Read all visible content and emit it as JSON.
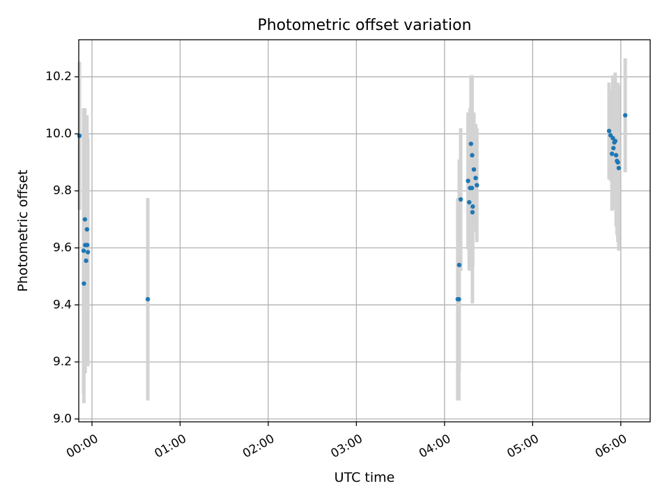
{
  "chart_data": {
    "type": "scatter",
    "title": "Photometric offset variation",
    "xlabel": "UTC time",
    "ylabel": "Photometric offset",
    "xlim": [
      "-00:09",
      "06:20"
    ],
    "ylim": [
      8.99,
      10.33
    ],
    "xticks": [
      "00:00",
      "01:00",
      "02:00",
      "03:00",
      "04:00",
      "05:00",
      "06:00"
    ],
    "yticks": [
      "9.0",
      "9.2",
      "9.4",
      "9.6",
      "9.8",
      "10.0",
      "10.2"
    ],
    "grid": true,
    "colors": {
      "points": "#1f77b4",
      "errorbars": "#d3d3d3"
    },
    "points": [
      {
        "t": "-00:08.5",
        "y": 9.993,
        "err": 0.26
      },
      {
        "t": "-00:05.7",
        "y": 9.59,
        "err": 0.5
      },
      {
        "t": "-00:05.5",
        "y": 9.475,
        "err": 0.42
      },
      {
        "t": "-00:04.8",
        "y": 9.7,
        "err": 0.39
      },
      {
        "t": "-00:04.6",
        "y": 9.61,
        "err": 0.45
      },
      {
        "t": "-00:04.0",
        "y": 9.555,
        "err": 0.37
      },
      {
        "t": "-00:03.4",
        "y": 9.665,
        "err": 0.4
      },
      {
        "t": "-00:03.2",
        "y": 9.61,
        "err": 0.39
      },
      {
        "t": "-00:02.8",
        "y": 9.585,
        "err": 0.4
      },
      {
        "t": "00:38.0",
        "y": 9.42,
        "err": 0.355
      },
      {
        "t": "04:09.0",
        "y": 9.42,
        "err": 0.355
      },
      {
        "t": "04:09.8",
        "y": 9.42,
        "err": 0.355
      },
      {
        "t": "04:10.0",
        "y": 9.54,
        "err": 0.37
      },
      {
        "t": "04:11.0",
        "y": 9.77,
        "err": 0.25
      },
      {
        "t": "04:16.0",
        "y": 9.835,
        "err": 0.24
      },
      {
        "t": "04:16.8",
        "y": 9.76,
        "err": 0.24
      },
      {
        "t": "04:17.4",
        "y": 9.81,
        "err": 0.28
      },
      {
        "t": "04:18.0",
        "y": 9.965,
        "err": 0.24
      },
      {
        "t": "04:18.6",
        "y": 9.81,
        "err": 0.26
      },
      {
        "t": "04:18.8",
        "y": 9.925,
        "err": 0.28
      },
      {
        "t": "04:19.0",
        "y": 9.725,
        "err": 0.32
      },
      {
        "t": "04:19.2",
        "y": 9.745,
        "err": 0.21
      },
      {
        "t": "04:20.0",
        "y": 9.875,
        "err": 0.2
      },
      {
        "t": "04:21.2",
        "y": 9.845,
        "err": 0.19
      },
      {
        "t": "04:22.0",
        "y": 9.82,
        "err": 0.2
      },
      {
        "t": "05:52.0",
        "y": 10.01,
        "err": 0.17
      },
      {
        "t": "05:53.0",
        "y": 9.995,
        "err": 0.16
      },
      {
        "t": "05:54.0",
        "y": 9.93,
        "err": 0.2
      },
      {
        "t": "05:54.6",
        "y": 9.985,
        "err": 0.22
      },
      {
        "t": "05:55.0",
        "y": 9.95,
        "err": 0.21
      },
      {
        "t": "05:55.6",
        "y": 9.97,
        "err": 0.23
      },
      {
        "t": "05:56.2",
        "y": 9.975,
        "err": 0.24
      },
      {
        "t": "05:56.8",
        "y": 9.925,
        "err": 0.25
      },
      {
        "t": "05:57.4",
        "y": 9.905,
        "err": 0.26
      },
      {
        "t": "05:58.0",
        "y": 9.9,
        "err": 0.28
      },
      {
        "t": "05:58.6",
        "y": 9.88,
        "err": 0.29
      },
      {
        "t": "06:03.0",
        "y": 10.065,
        "err": 0.2
      }
    ]
  }
}
